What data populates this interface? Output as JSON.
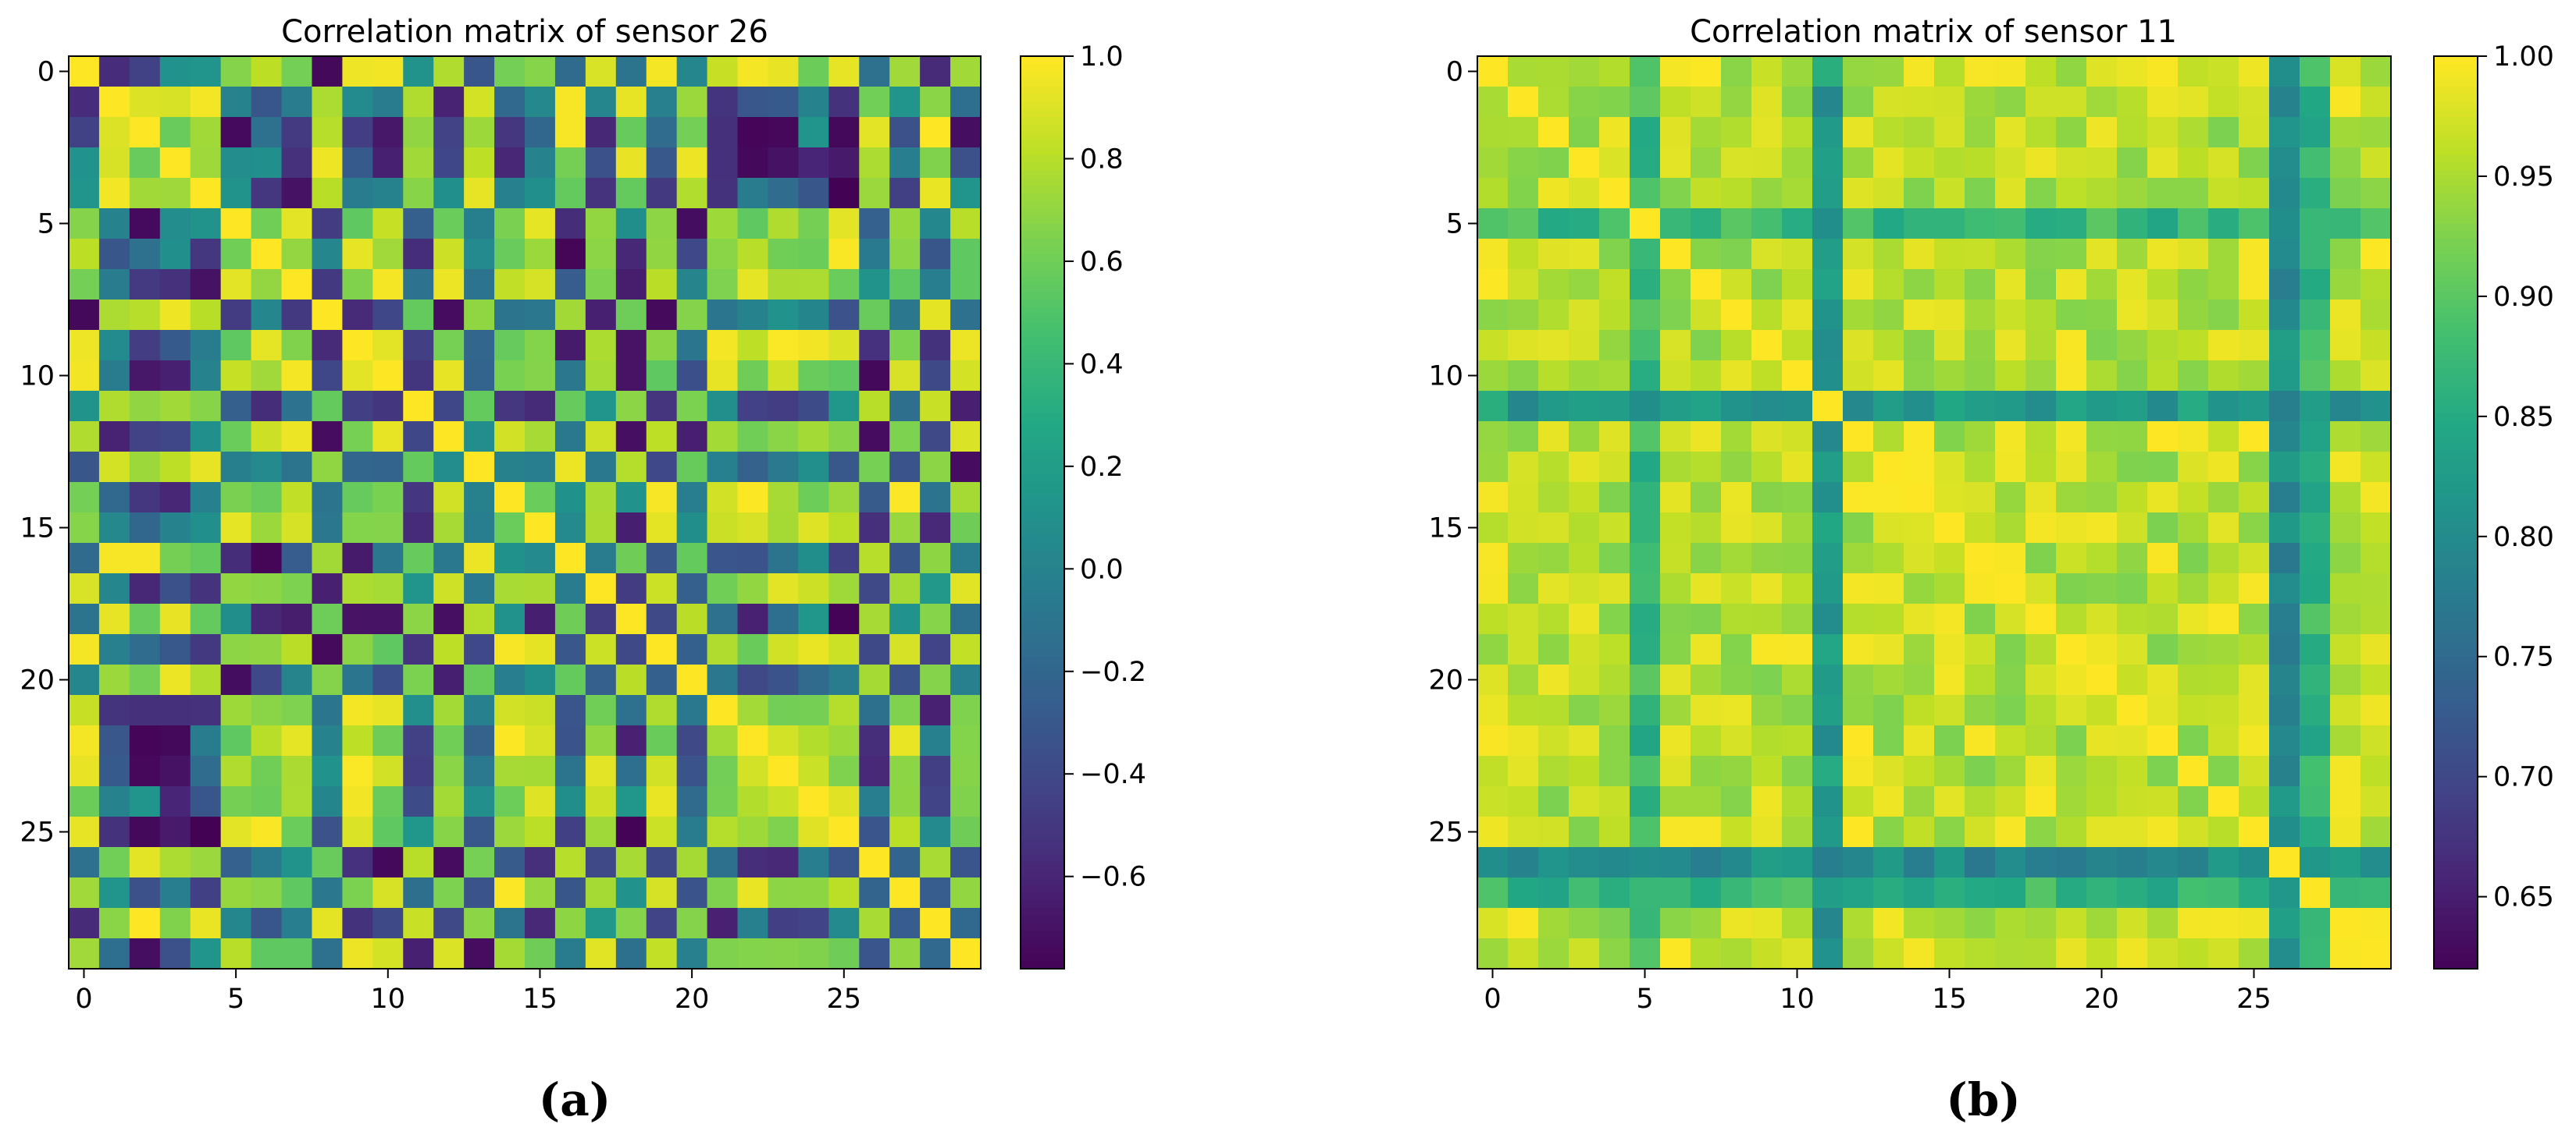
{
  "figure": {
    "colormap": "viridis",
    "background": "#ffffff"
  },
  "chart_data": [
    {
      "type": "heatmap",
      "title": "Correlation matrix of sensor 26",
      "caption": "(a)",
      "size": 30,
      "x_ticks": [
        0,
        5,
        10,
        15,
        20,
        25
      ],
      "y_ticks": [
        0,
        5,
        10,
        15,
        20,
        25
      ],
      "xlabel": "",
      "ylabel": "",
      "vmin": -0.78,
      "vmax": 1.0,
      "colorbar_ticks": [
        1.0,
        0.8,
        0.6,
        0.4,
        0.2,
        0.0,
        -0.2,
        -0.4,
        -0.6
      ],
      "colorbar_tick_labels": [
        "1.0",
        "0.8",
        "0.6",
        "0.4",
        "0.2",
        "0.0",
        "−0.2",
        "−0.4",
        "−0.6"
      ],
      "groups": {
        "A": [
          0,
          5,
          6,
          7,
          9,
          10,
          12,
          14,
          15,
          17,
          19,
          21,
          22,
          23,
          24,
          25,
          27,
          29
        ],
        "B": [
          1,
          2,
          3,
          4,
          8,
          11,
          13,
          16,
          18,
          20,
          26,
          28
        ]
      },
      "note": "Matrix shows strong block (checkerboard) structure: within-group correlations ~0.6–1.0, between-group correlations ~-0.75 to 0.2; diagonal = 1.0"
    },
    {
      "type": "heatmap",
      "title": "Correlation matrix of sensor 11",
      "caption": "(b)",
      "size": 30,
      "x_ticks": [
        0,
        5,
        10,
        15,
        20,
        25
      ],
      "y_ticks": [
        0,
        5,
        10,
        15,
        20,
        25
      ],
      "xlabel": "",
      "ylabel": "",
      "vmin": 0.62,
      "vmax": 1.0,
      "colorbar_ticks": [
        1.0,
        0.95,
        0.9,
        0.85,
        0.8,
        0.75,
        0.7,
        0.65
      ],
      "colorbar_tick_labels": [
        "1.00",
        "0.95",
        "0.90",
        "0.85",
        "0.80",
        "0.75",
        "0.70",
        "0.65"
      ],
      "special_rows": [
        {
          "index": 5,
          "base": 0.87
        },
        {
          "index": 11,
          "base": 0.82
        },
        {
          "index": 26,
          "base": 0.8
        },
        {
          "index": 27,
          "base": 0.86
        }
      ],
      "note": "Most correlations 0.93–1.0; sensors 5, 11, 26, 27 show lower correlations (0.65–0.88); diagonal = 1.0"
    }
  ]
}
